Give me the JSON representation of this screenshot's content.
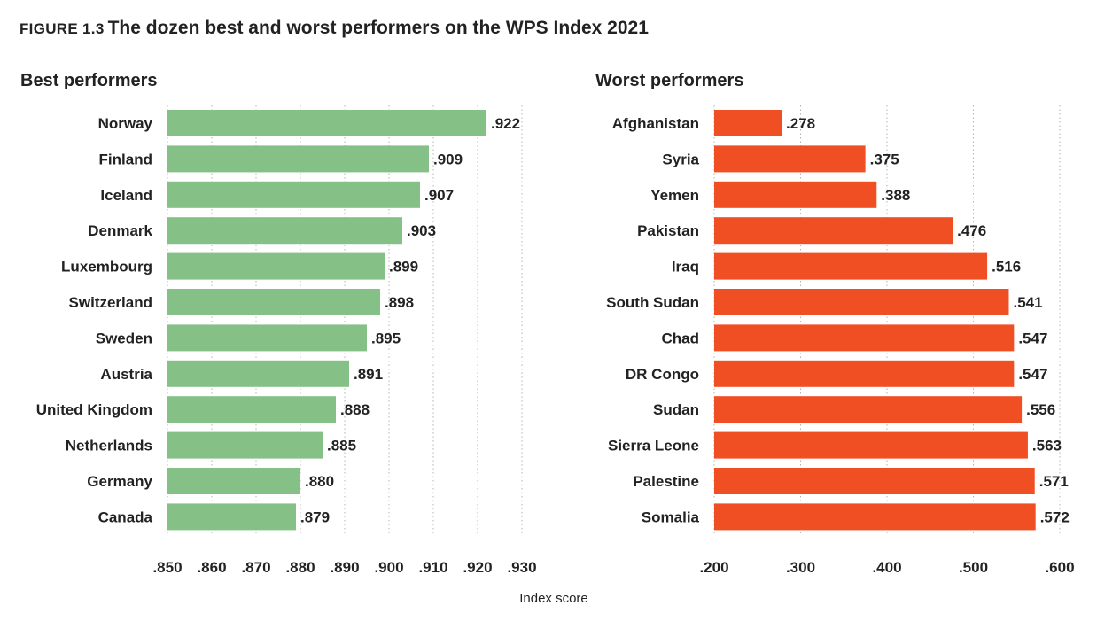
{
  "figure": {
    "label": "FIGURE 1.3",
    "title": "The dozen best and worst performers on the WPS Index 2021"
  },
  "chart_data": [
    {
      "type": "bar",
      "orientation": "horizontal",
      "title": "Best performers",
      "xlabel": "Index score",
      "color": "#85c087",
      "xlim": [
        0.85,
        0.93
      ],
      "ticks": [
        0.85,
        0.86,
        0.87,
        0.88,
        0.89,
        0.9,
        0.91,
        0.92,
        0.93
      ],
      "tick_labels": [
        ".850",
        ".860",
        ".870",
        ".880",
        ".890",
        ".900",
        ".910",
        ".920",
        ".930"
      ],
      "grid": true,
      "categories": [
        "Norway",
        "Finland",
        "Iceland",
        "Denmark",
        "Luxembourg",
        "Switzerland",
        "Sweden",
        "Austria",
        "United Kingdom",
        "Netherlands",
        "Germany",
        "Canada"
      ],
      "values": [
        0.922,
        0.909,
        0.907,
        0.903,
        0.899,
        0.898,
        0.895,
        0.891,
        0.888,
        0.885,
        0.88,
        0.879
      ],
      "value_labels": [
        ".922",
        ".909",
        ".907",
        ".903",
        ".899",
        ".898",
        ".895",
        ".891",
        ".888",
        ".885",
        ".880",
        ".879"
      ]
    },
    {
      "type": "bar",
      "orientation": "horizontal",
      "title": "Worst performers",
      "xlabel": "Index score",
      "color": "#f04e23",
      "xlim": [
        0.2,
        0.6
      ],
      "ticks": [
        0.2,
        0.3,
        0.4,
        0.5,
        0.6
      ],
      "tick_labels": [
        ".200",
        ".300",
        ".400",
        ".500",
        ".600"
      ],
      "grid": true,
      "categories": [
        "Afghanistan",
        "Syria",
        "Yemen",
        "Pakistan",
        "Iraq",
        "South Sudan",
        "Chad",
        "DR Congo",
        "Sudan",
        "Sierra Leone",
        "Palestine",
        "Somalia"
      ],
      "values": [
        0.278,
        0.375,
        0.388,
        0.476,
        0.516,
        0.541,
        0.547,
        0.547,
        0.556,
        0.563,
        0.571,
        0.572
      ],
      "value_labels": [
        ".278",
        ".375",
        ".388",
        ".476",
        ".516",
        ".541",
        ".547",
        ".547",
        ".556",
        ".563",
        ".571",
        ".572"
      ]
    }
  ],
  "axis_title": "Index score"
}
